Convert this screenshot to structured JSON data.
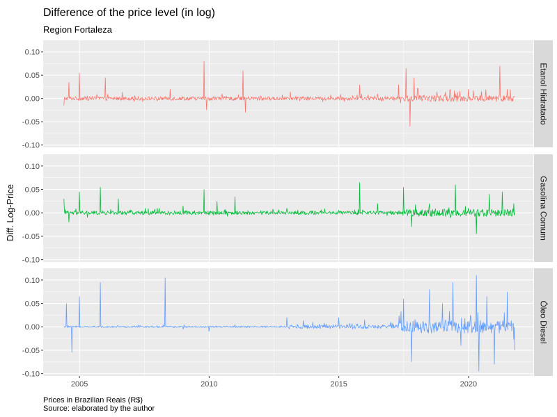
{
  "title": "Difference of the price level (in log)",
  "subtitle": "Region Fortaleza",
  "caption_line1": "Prices in Brazilian Reais (R$)",
  "caption_line2": "Source: elaborated by the author",
  "colors": {
    "panel_bg": "#EBEBEB",
    "grid": "#FFFFFF",
    "strip_bg": "#D9D9D9",
    "text": "#000000",
    "tick_text": "#4D4D4D"
  },
  "chart_data": {
    "type": "line",
    "title": "Difference of the price level (in log)",
    "subtitle": "Region Fortaleza",
    "xlabel": "",
    "ylabel": "Diff. Log-Price",
    "xlim": [
      2003.6,
      2022.5
    ],
    "ylim": [
      -0.105,
      0.125
    ],
    "x_ticks": [
      2005,
      2010,
      2015,
      2020
    ],
    "x_tick_labels": [
      "2005",
      "2010",
      "2015",
      "2020"
    ],
    "y_ticks": [
      -0.1,
      -0.05,
      0.0,
      0.05,
      0.1
    ],
    "y_tick_labels": [
      "-0.10",
      "-0.05",
      "0.00",
      "0.05",
      "0.10"
    ],
    "grid": true,
    "legend": "none (facet strips on right)",
    "x_start": 2004.4,
    "x_end": 2021.8,
    "series": [
      {
        "name": "Etanol Hidratado",
        "color": "#F8766D",
        "key_points": [
          [
            2004.4,
            -0.015
          ],
          [
            2004.6,
            0.035
          ],
          [
            2005.0,
            0.055
          ],
          [
            2005.5,
            0.005
          ],
          [
            2006.0,
            0.045
          ],
          [
            2007.0,
            0.002
          ],
          [
            2008.0,
            -0.005
          ],
          [
            2008.5,
            0.02
          ],
          [
            2009.0,
            0.003
          ],
          [
            2009.8,
            0.08
          ],
          [
            2009.9,
            -0.025
          ],
          [
            2010.5,
            0.01
          ],
          [
            2011.3,
            0.06
          ],
          [
            2011.4,
            -0.03
          ],
          [
            2012.0,
            0.005
          ],
          [
            2013.0,
            0.003
          ],
          [
            2014.0,
            0.002
          ],
          [
            2015.0,
            0.003
          ],
          [
            2015.8,
            0.03
          ],
          [
            2016.5,
            0.01
          ],
          [
            2017.3,
            0.03
          ],
          [
            2017.6,
            0.065
          ],
          [
            2017.75,
            -0.06
          ],
          [
            2017.9,
            0.045
          ],
          [
            2018.5,
            0.005
          ],
          [
            2019.5,
            0.01
          ],
          [
            2020.0,
            0.02
          ],
          [
            2020.5,
            0.015
          ],
          [
            2021.2,
            0.07
          ],
          [
            2021.5,
            0.02
          ],
          [
            2021.8,
            0.005
          ]
        ]
      },
      {
        "name": "Gasolina Comum",
        "color": "#00BA38",
        "key_points": [
          [
            2004.4,
            0.03
          ],
          [
            2004.6,
            -0.02
          ],
          [
            2005.0,
            0.045
          ],
          [
            2005.3,
            -0.01
          ],
          [
            2005.8,
            0.055
          ],
          [
            2006.5,
            0.03
          ],
          [
            2007.0,
            0.005
          ],
          [
            2008.0,
            0.01
          ],
          [
            2009.0,
            0.015
          ],
          [
            2009.8,
            0.05
          ],
          [
            2010.3,
            0.025
          ],
          [
            2011.0,
            0.035
          ],
          [
            2012.0,
            0.005
          ],
          [
            2013.0,
            0.01
          ],
          [
            2014.0,
            0.005
          ],
          [
            2015.0,
            0.005
          ],
          [
            2015.8,
            0.065
          ],
          [
            2016.5,
            0.02
          ],
          [
            2017.5,
            0.055
          ],
          [
            2017.8,
            -0.03
          ],
          [
            2018.5,
            0.02
          ],
          [
            2019.5,
            0.06
          ],
          [
            2020.0,
            0.01
          ],
          [
            2020.3,
            -0.045
          ],
          [
            2020.8,
            0.04
          ],
          [
            2021.3,
            0.045
          ],
          [
            2021.8,
            0.0
          ]
        ]
      },
      {
        "name": "Óleo Diesel",
        "color": "#619CFF",
        "key_points": [
          [
            2004.4,
            0.0
          ],
          [
            2004.5,
            0.05
          ],
          [
            2004.7,
            -0.055
          ],
          [
            2005.0,
            0.065
          ],
          [
            2005.8,
            0.095
          ],
          [
            2006.5,
            0.002
          ],
          [
            2007.0,
            0.0
          ],
          [
            2008.0,
            0.002
          ],
          [
            2008.3,
            0.105
          ],
          [
            2009.0,
            -0.005
          ],
          [
            2010.0,
            -0.01
          ],
          [
            2011.0,
            0.005
          ],
          [
            2012.0,
            0.0
          ],
          [
            2013.0,
            0.02
          ],
          [
            2014.0,
            0.01
          ],
          [
            2015.0,
            0.02
          ],
          [
            2016.0,
            0.015
          ],
          [
            2017.0,
            0.01
          ],
          [
            2017.5,
            0.06
          ],
          [
            2017.8,
            -0.075
          ],
          [
            2018.5,
            0.08
          ],
          [
            2019.0,
            0.05
          ],
          [
            2019.4,
            0.095
          ],
          [
            2019.7,
            -0.04
          ],
          [
            2020.3,
            0.11
          ],
          [
            2020.4,
            -0.095
          ],
          [
            2020.7,
            0.065
          ],
          [
            2021.0,
            -0.08
          ],
          [
            2021.5,
            0.075
          ],
          [
            2021.8,
            -0.05
          ]
        ]
      }
    ]
  }
}
